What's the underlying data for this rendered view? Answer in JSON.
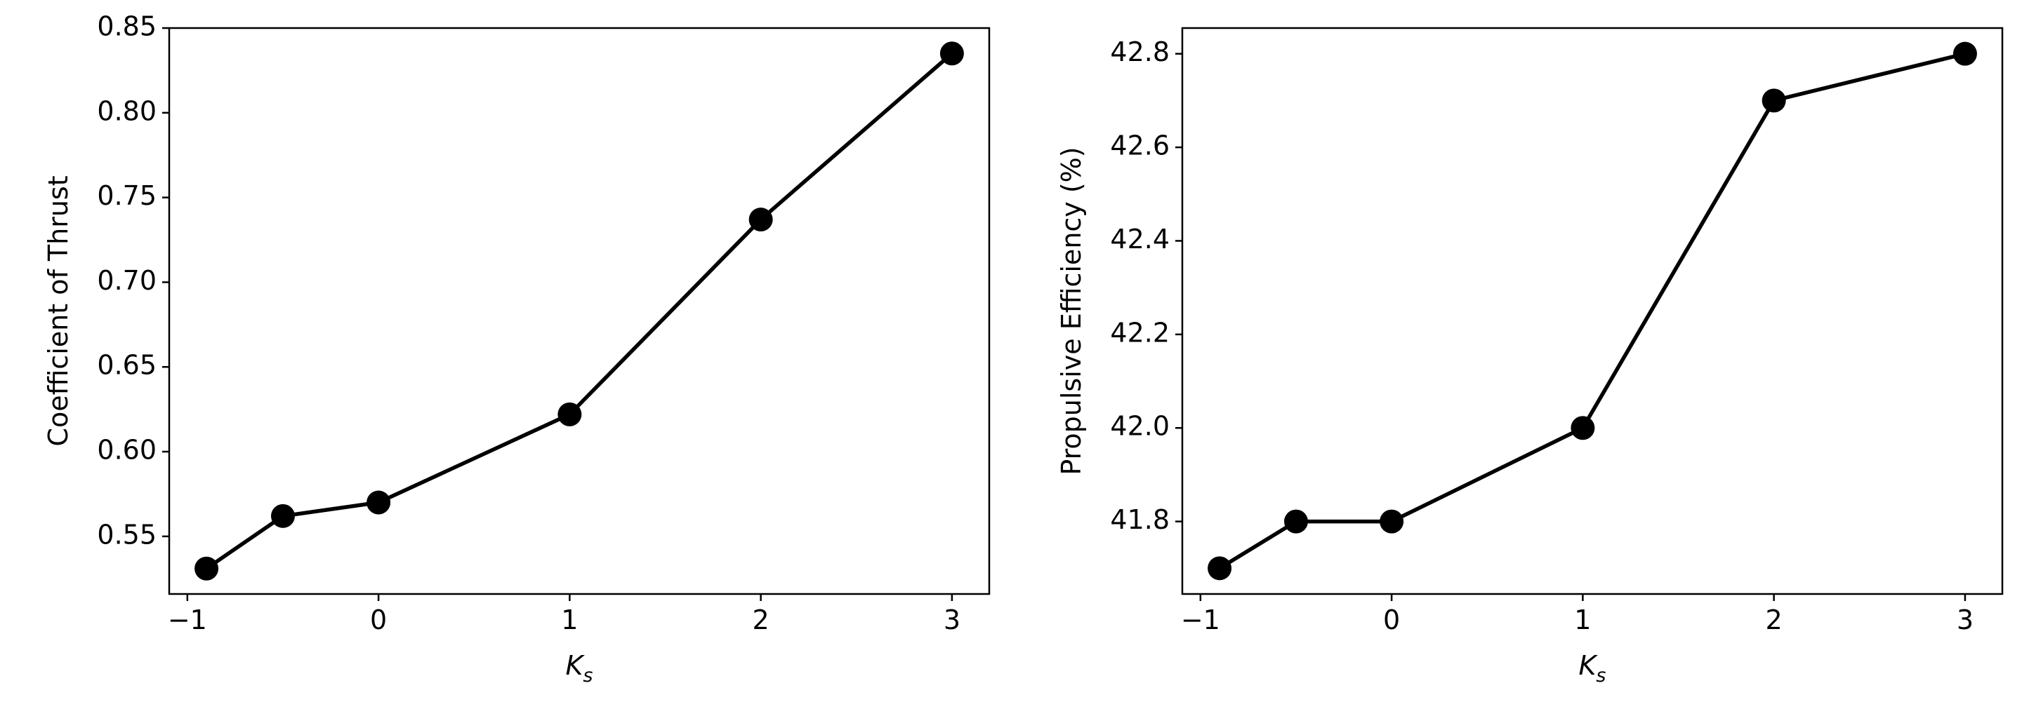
{
  "chart_data": [
    {
      "type": "line",
      "ylabel": "Coefficient of Thrust",
      "xlabel": {
        "base": "K",
        "sub": "s"
      },
      "x": [
        -0.9,
        -0.5,
        0,
        1,
        2,
        3
      ],
      "series": [
        {
          "color": "#000000",
          "values": [
            0.531,
            0.562,
            0.57,
            0.622,
            0.737,
            0.835
          ]
        }
      ],
      "xlim": [
        -1.095,
        3.195
      ],
      "ylim": [
        0.516,
        0.85
      ],
      "xticks": [
        {
          "value": -1,
          "label": "−1"
        },
        0,
        1,
        2,
        3
      ],
      "yticks": [
        0.55,
        {
          "value": 0.6,
          "label": "0.60"
        },
        0.65,
        {
          "value": 0.7,
          "label": "0.70"
        },
        0.75,
        {
          "value": 0.8,
          "label": "0.80"
        },
        0.85
      ]
    },
    {
      "type": "line",
      "ylabel": "Propulsive Efficiency (%)",
      "xlabel": {
        "base": "K",
        "sub": "s"
      },
      "x": [
        -0.9,
        -0.5,
        0,
        1,
        2,
        3
      ],
      "series": [
        {
          "color": "#000000",
          "values": [
            41.7,
            41.8,
            41.8,
            42.0,
            42.7,
            42.8
          ]
        }
      ],
      "xlim": [
        -1.095,
        3.195
      ],
      "ylim": [
        41.645,
        42.855
      ],
      "xticks": [
        {
          "value": -1,
          "label": "−1"
        },
        0,
        1,
        2,
        3
      ],
      "yticks": [
        41.8,
        {
          "value": 42,
          "label": "42.0"
        },
        42.2,
        42.4,
        42.6,
        42.8
      ]
    }
  ]
}
